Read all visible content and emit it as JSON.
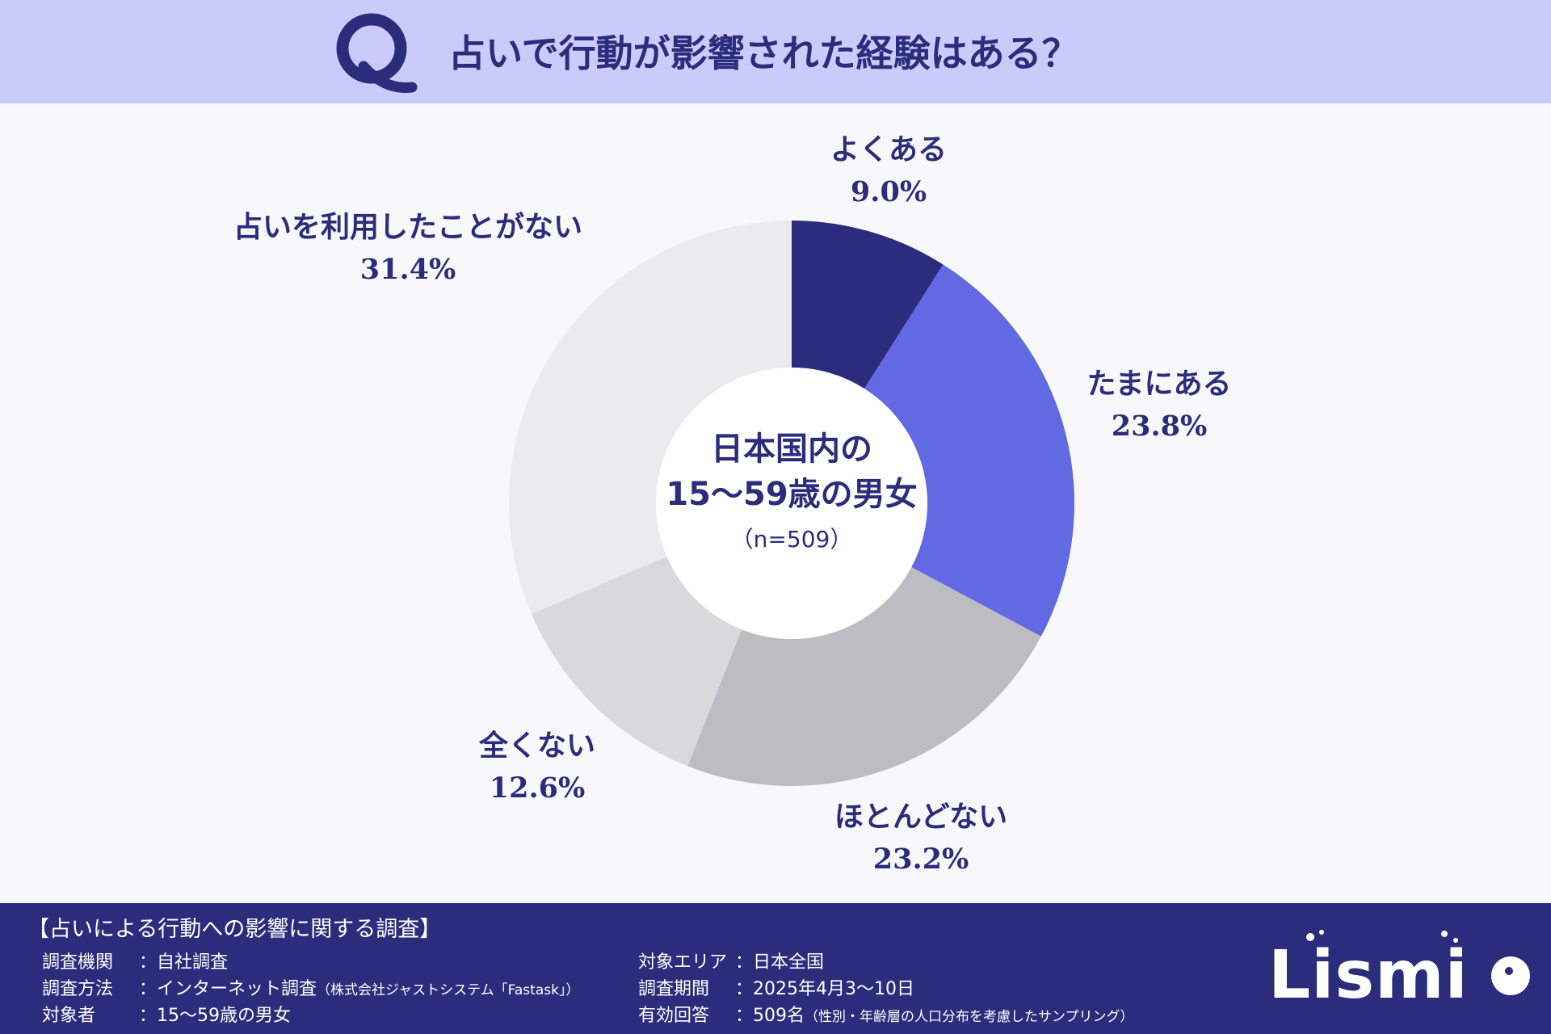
{
  "header": {
    "q_letter": "Q",
    "title": "占いで行動が影響された経験はある？"
  },
  "colors": {
    "header_bg": "#cbcbfb",
    "accent": "#2b2d7c",
    "page_bg": "#f8f8fc"
  },
  "chart_data": {
    "type": "pie",
    "donut": true,
    "categories": [
      "よくある",
      "たまにある",
      "ほとんどない",
      "全くない",
      "占いを利用したことがない"
    ],
    "values": [
      9.0,
      23.8,
      23.2,
      12.6,
      31.4
    ],
    "value_labels": [
      "9.0%",
      "23.8%",
      "23.2%",
      "12.6%",
      "31.4%"
    ],
    "colors": [
      "#2b2d7c",
      "#6169e3",
      "#bcbcc3",
      "#d9d9db",
      "#ebebed"
    ],
    "center_label": {
      "line1": "日本国内の",
      "line2": "15〜59歳の男女",
      "line3": "（n=509）"
    }
  },
  "footer": {
    "title": "【占いによる行動への影響に関する調査】",
    "left_rows": [
      {
        "key": "調査機関",
        "value": "自社調査",
        "note": ""
      },
      {
        "key": "調査方法",
        "value": "インターネット調査",
        "note": "（株式会社ジャストシステム「Fastask」）"
      },
      {
        "key": "対象者",
        "value": "15〜59歳の男女",
        "note": ""
      }
    ],
    "right_rows": [
      {
        "key": "対象エリア",
        "value": "日本全国",
        "note": ""
      },
      {
        "key": "調査期間",
        "value": "2025年4月3〜10日",
        "note": ""
      },
      {
        "key": "有効回答",
        "value": "509名",
        "note": "（性別・年齢層の人口分布を考慮したサンプリング）"
      }
    ],
    "separator": "：",
    "logo": "Lismi"
  }
}
